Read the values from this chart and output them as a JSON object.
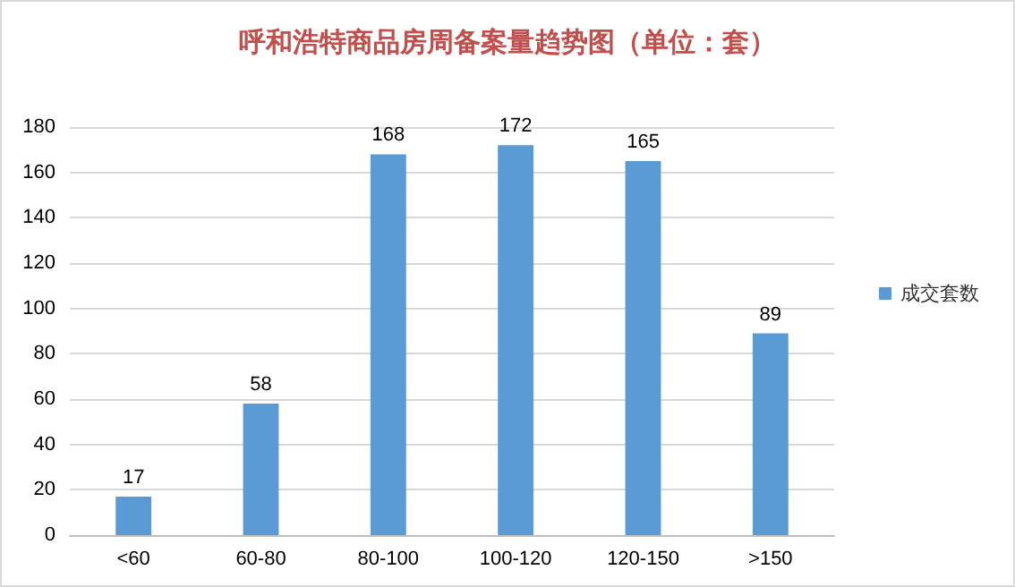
{
  "chart_data": {
    "type": "bar",
    "title": "呼和浩特商品房周备案量趋势图（单位：套）",
    "categories": [
      "<60",
      "60-80",
      "80-100",
      "100-120",
      "120-150",
      ">150"
    ],
    "series": [
      {
        "name": "成交套数",
        "color": "#5b9bd5",
        "values": [
          17,
          58,
          168,
          172,
          165,
          89
        ]
      }
    ],
    "ylim": [
      0,
      180
    ],
    "yticks": [
      0,
      20,
      40,
      60,
      80,
      100,
      120,
      140,
      160,
      180
    ],
    "grid": "y",
    "legend": "right",
    "data_labels": true
  }
}
